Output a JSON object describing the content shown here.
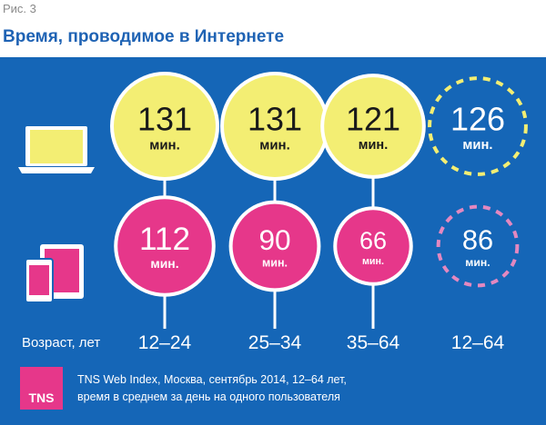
{
  "figure_label": "Рис. 3",
  "title": "Время, проводимое в Интернете",
  "colors": {
    "background": "#1566b7",
    "desktop": "#f3ee73",
    "mobile": "#e6378a",
    "desktop_total": "#f3ee73",
    "mobile_total": "#e388c0",
    "title": "#1f63b4"
  },
  "chart_data": {
    "type": "bubble",
    "title": "Время, проводимое в Интернете",
    "xlabel": "Возраст, лет",
    "categories": [
      "12–24",
      "25–34",
      "35–64",
      "12–64"
    ],
    "unit": "мин.",
    "series": [
      {
        "name": "laptop",
        "icon": "laptop-icon",
        "values": [
          131,
          131,
          121,
          126
        ]
      },
      {
        "name": "mobile-devices",
        "icon": "tablet-phone-icon",
        "values": [
          112,
          90,
          66,
          86
        ]
      }
    ],
    "total_category": "12–64"
  },
  "source": {
    "logo": "TNS",
    "line1": "TNS Web Index, Москва, сентябрь 2014, 12–64 лет,",
    "line2": "время в среднем за день на одного пользователя"
  }
}
